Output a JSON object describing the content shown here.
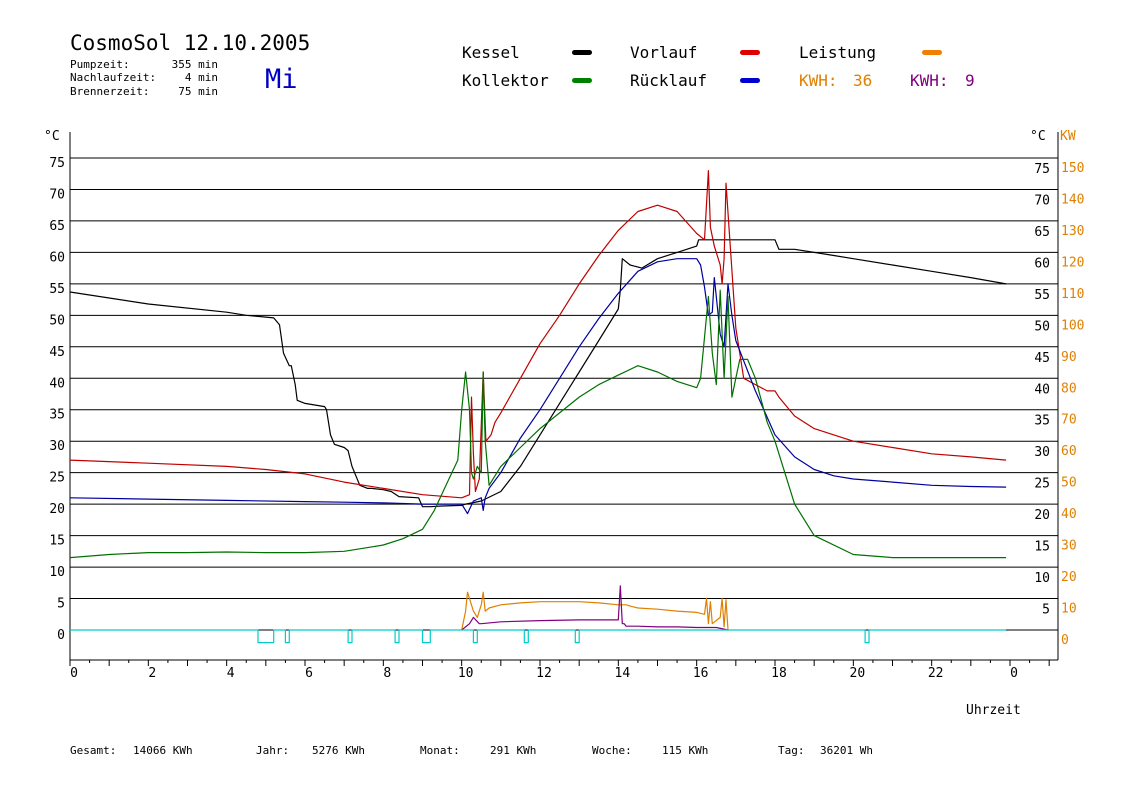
{
  "header": {
    "title": "CosmoSol 12.10.2005",
    "day": "Mi",
    "stats": [
      {
        "label": "Pumpzeit:",
        "value": "355 min"
      },
      {
        "label": "Nachlaufzeit:",
        "value": "4 min"
      },
      {
        "label": "Brennerzeit:",
        "value": "75 min"
      }
    ]
  },
  "legend": [
    {
      "label": "Kessel",
      "color": "#000000"
    },
    {
      "label": "Vorlauf",
      "color": "#e00000"
    },
    {
      "label": "Leistung",
      "color": "#f08000"
    },
    {
      "label": "Kollektor",
      "color": "#008000"
    },
    {
      "label": "Rücklauf",
      "color": "#0000d0"
    }
  ],
  "kwh": [
    {
      "label": "KWH:",
      "value": "36",
      "color": "#e08000"
    },
    {
      "label": "KWH:",
      "value": "9",
      "color": "#800080"
    }
  ],
  "footer": [
    {
      "label": "Gesamt:",
      "value": "14066 KWh"
    },
    {
      "label": "Jahr:",
      "value": "5276 KWh"
    },
    {
      "label": "Monat:",
      "value": "291 KWh"
    },
    {
      "label": "Woche:",
      "value": "115 KWh"
    },
    {
      "label": "Tag:",
      "value": "36201 Wh"
    }
  ],
  "colors": {
    "kessel": "#000000",
    "vorlauf": "#c00000",
    "kollektor": "#007000",
    "ruecklauf": "#0000a0",
    "leistung": "#e08000",
    "leistung2": "#800080",
    "pump": "#00cccc",
    "kw_axis": "#e08000",
    "day": "#0000c0"
  },
  "chart_data": {
    "type": "line",
    "xlabel": "Uhrzeit",
    "ylabel_left": "°C",
    "ylabel_right_1": "°C",
    "ylabel_right_2": "KW",
    "x_ticks": [
      "0",
      "2",
      "4",
      "6",
      "8",
      "10",
      "12",
      "14",
      "16",
      "18",
      "20",
      "22",
      "0"
    ],
    "y_ticks_left": [
      "0",
      "5",
      "10",
      "15",
      "20",
      "25",
      "30",
      "35",
      "40",
      "45",
      "50",
      "55",
      "60",
      "65",
      "70",
      "75"
    ],
    "y_ticks_right": [
      "5",
      "10",
      "15",
      "20",
      "25",
      "30",
      "35",
      "40",
      "45",
      "50",
      "55",
      "60",
      "65",
      "70",
      "75"
    ],
    "y_ticks_kw": [
      "0",
      "10",
      "20",
      "30",
      "40",
      "50",
      "60",
      "70",
      "80",
      "90",
      "100",
      "110",
      "120",
      "130",
      "140",
      "150"
    ],
    "xlim": [
      0,
      24
    ],
    "ylim": [
      0,
      75
    ],
    "grid": true,
    "series": [
      {
        "name": "Kessel",
        "key": "kessel",
        "x": [
          0,
          2,
          4,
          4.5,
          5.2,
          5.35,
          5.45,
          5.6,
          5.65,
          5.75,
          5.8,
          6,
          6.5,
          6.55,
          6.65,
          6.75,
          7,
          7.1,
          7.2,
          7.4,
          7.6,
          7.7,
          8,
          8.2,
          8.4,
          8.9,
          9,
          9.2,
          9.5,
          10,
          10.1,
          10.5,
          11,
          11.5,
          12,
          12.5,
          13,
          13.5,
          14,
          14.05,
          14.1,
          14.3,
          14.6,
          15,
          15.5,
          16,
          16.05,
          16.5,
          17,
          17.5,
          18,
          18.1,
          18.5,
          19,
          19.5,
          20,
          21,
          22,
          23,
          23.9
        ],
        "y": [
          53.7,
          51.8,
          50.5,
          50,
          49.6,
          48.5,
          44,
          42,
          42,
          39,
          36.5,
          36,
          35.5,
          35,
          31,
          29.5,
          29,
          28.5,
          26,
          23,
          22.5,
          22.5,
          22.3,
          22,
          21.2,
          21,
          19.6,
          19.6,
          19.7,
          19.8,
          20,
          20.5,
          22,
          26,
          31,
          36,
          41,
          46,
          51,
          54,
          59,
          58,
          57.5,
          59,
          60,
          61,
          62,
          62,
          62,
          62,
          62,
          60.5,
          60.5,
          60,
          59.5,
          59,
          58,
          57,
          56,
          55
        ]
      },
      {
        "name": "Vorlauf",
        "key": "vorlauf",
        "x": [
          0,
          2,
          4,
          5,
          6,
          7,
          8,
          9,
          10,
          10.2,
          10.25,
          10.3,
          10.35,
          10.45,
          10.55,
          10.62,
          10.75,
          10.85,
          11,
          11.5,
          12,
          12.5,
          13,
          13.5,
          14,
          14.5,
          15,
          15.5,
          16,
          16.2,
          16.3,
          16.35,
          16.45,
          16.6,
          16.65,
          16.7,
          16.75,
          17,
          17.2,
          17.5,
          17.8,
          18,
          18.1,
          18.5,
          19,
          20,
          21,
          22,
          23,
          23.9
        ],
        "y": [
          27,
          26.5,
          26,
          25.5,
          24.8,
          23.5,
          22.5,
          21.5,
          21,
          21.5,
          37,
          28,
          22,
          24,
          41,
          30,
          31,
          33,
          34.5,
          40,
          45.5,
          50,
          55,
          59.5,
          63.5,
          66.5,
          67.5,
          66.5,
          63,
          62,
          73,
          64,
          61,
          58,
          55,
          59,
          71,
          48,
          40,
          39,
          38,
          38,
          37,
          34,
          32,
          30,
          29,
          28,
          27.5,
          27
        ]
      },
      {
        "name": "Rücklauf",
        "key": "ruecklauf",
        "x": [
          0,
          2,
          4,
          6,
          7,
          8,
          9,
          10,
          10.15,
          10.3,
          10.5,
          10.55,
          10.6,
          10.7,
          11,
          11.5,
          12,
          12.5,
          13,
          13.5,
          14,
          14.5,
          15,
          15.5,
          16,
          16.1,
          16.2,
          16.3,
          16.4,
          16.45,
          16.6,
          16.7,
          16.8,
          16.9,
          17,
          17.5,
          18,
          18.5,
          19,
          19.5,
          20,
          21,
          22,
          23,
          23.9
        ],
        "y": [
          21,
          20.8,
          20.6,
          20.4,
          20.3,
          20.2,
          20,
          20,
          18.5,
          20.5,
          21,
          19,
          21,
          22.5,
          25,
          30.5,
          35,
          40,
          45,
          49.5,
          53.5,
          57,
          58.5,
          59,
          59,
          58,
          54.5,
          50,
          50.5,
          56,
          47,
          45,
          55,
          50,
          46,
          38,
          31,
          27.5,
          25.5,
          24.5,
          24,
          23.5,
          23,
          22.8,
          22.7
        ]
      },
      {
        "name": "Kollektor",
        "key": "kollektor",
        "x": [
          0,
          1,
          2,
          3,
          4,
          5,
          6,
          7,
          7.5,
          8,
          8.5,
          9,
          9.3,
          9.6,
          9.9,
          10,
          10.1,
          10.2,
          10.25,
          10.3,
          10.4,
          10.5,
          10.55,
          10.6,
          10.7,
          11,
          11.5,
          12,
          12.5,
          13,
          13.5,
          14,
          14.5,
          15,
          15.5,
          16,
          16.1,
          16.3,
          16.4,
          16.5,
          16.6,
          16.7,
          16.8,
          16.9,
          17,
          17.1,
          17.3,
          17.5,
          17.8,
          18,
          18.5,
          19,
          20,
          21,
          22,
          23,
          23.9
        ],
        "y": [
          11.5,
          12,
          12.3,
          12.3,
          12.4,
          12.3,
          12.3,
          12.5,
          13,
          13.5,
          14.5,
          16,
          19,
          23,
          27,
          35,
          41,
          35,
          25,
          24,
          26,
          25,
          41,
          30,
          23,
          26,
          29,
          32,
          34.5,
          37,
          39,
          40.5,
          42,
          41,
          39.5,
          38.5,
          40,
          53,
          44,
          39,
          54,
          40,
          53,
          37,
          40,
          43,
          43,
          40,
          33,
          30,
          20,
          15,
          12,
          11.5,
          11.5,
          11.5,
          11.5
        ]
      },
      {
        "name": "Leistung",
        "key": "leistung",
        "x": [
          10,
          10.1,
          10.15,
          10.3,
          10.4,
          10.5,
          10.55,
          10.6,
          10.7,
          11,
          11.5,
          12,
          12.5,
          13,
          13.5,
          14,
          14.2,
          14.3,
          14.5,
          15,
          15.5,
          16,
          16.2,
          16.25,
          16.3,
          16.35,
          16.4,
          16.6,
          16.65,
          16.7,
          16.75,
          16.8
        ],
        "y": [
          0,
          3,
          6,
          3,
          2,
          4,
          6,
          3,
          3.5,
          4,
          4.3,
          4.5,
          4.5,
          4.5,
          4.3,
          4,
          4,
          3.8,
          3.5,
          3.3,
          3,
          2.8,
          2.5,
          5,
          1,
          4.5,
          1,
          2,
          5,
          0.5,
          4.8,
          0
        ]
      },
      {
        "name": "Leistung2",
        "key": "leistung2",
        "x": [
          10,
          10.2,
          10.3,
          10.45,
          10.5,
          11,
          12,
          13,
          14,
          14.05,
          14.1,
          14.15,
          14.2,
          14.3,
          14.5,
          15,
          15.5,
          16,
          16.5,
          16.8
        ],
        "y": [
          0,
          1,
          2,
          1,
          1,
          1.3,
          1.5,
          1.6,
          1.6,
          7,
          1,
          1,
          0.6,
          0.6,
          0.6,
          0.5,
          0.5,
          0.4,
          0.4,
          0
        ]
      },
      {
        "name": "Pumpe",
        "key": "pump",
        "x": [
          0,
          4.8,
          4.8,
          5.2,
          5.2,
          5.5,
          5.5,
          5.6,
          5.6,
          7.1,
          7.1,
          7.2,
          7.2,
          8.3,
          8.3,
          8.4,
          8.4,
          9,
          9,
          9.2,
          9.2,
          10.3,
          10.3,
          10.4,
          10.4,
          11.6,
          11.6,
          11.7,
          11.7,
          12.9,
          12.9,
          13,
          13,
          20.3,
          20.3,
          20.4,
          20.4,
          23.9
        ],
        "y": [
          0,
          0,
          -2,
          -2,
          0,
          0,
          -2,
          -2,
          0,
          0,
          -2,
          -2,
          0,
          0,
          -2,
          -2,
          0,
          0,
          -2,
          -2,
          0,
          0,
          -2,
          -2,
          0,
          0,
          -2,
          -2,
          0,
          0,
          -2,
          -2,
          0,
          0,
          -2,
          -2,
          0,
          0
        ]
      }
    ]
  }
}
